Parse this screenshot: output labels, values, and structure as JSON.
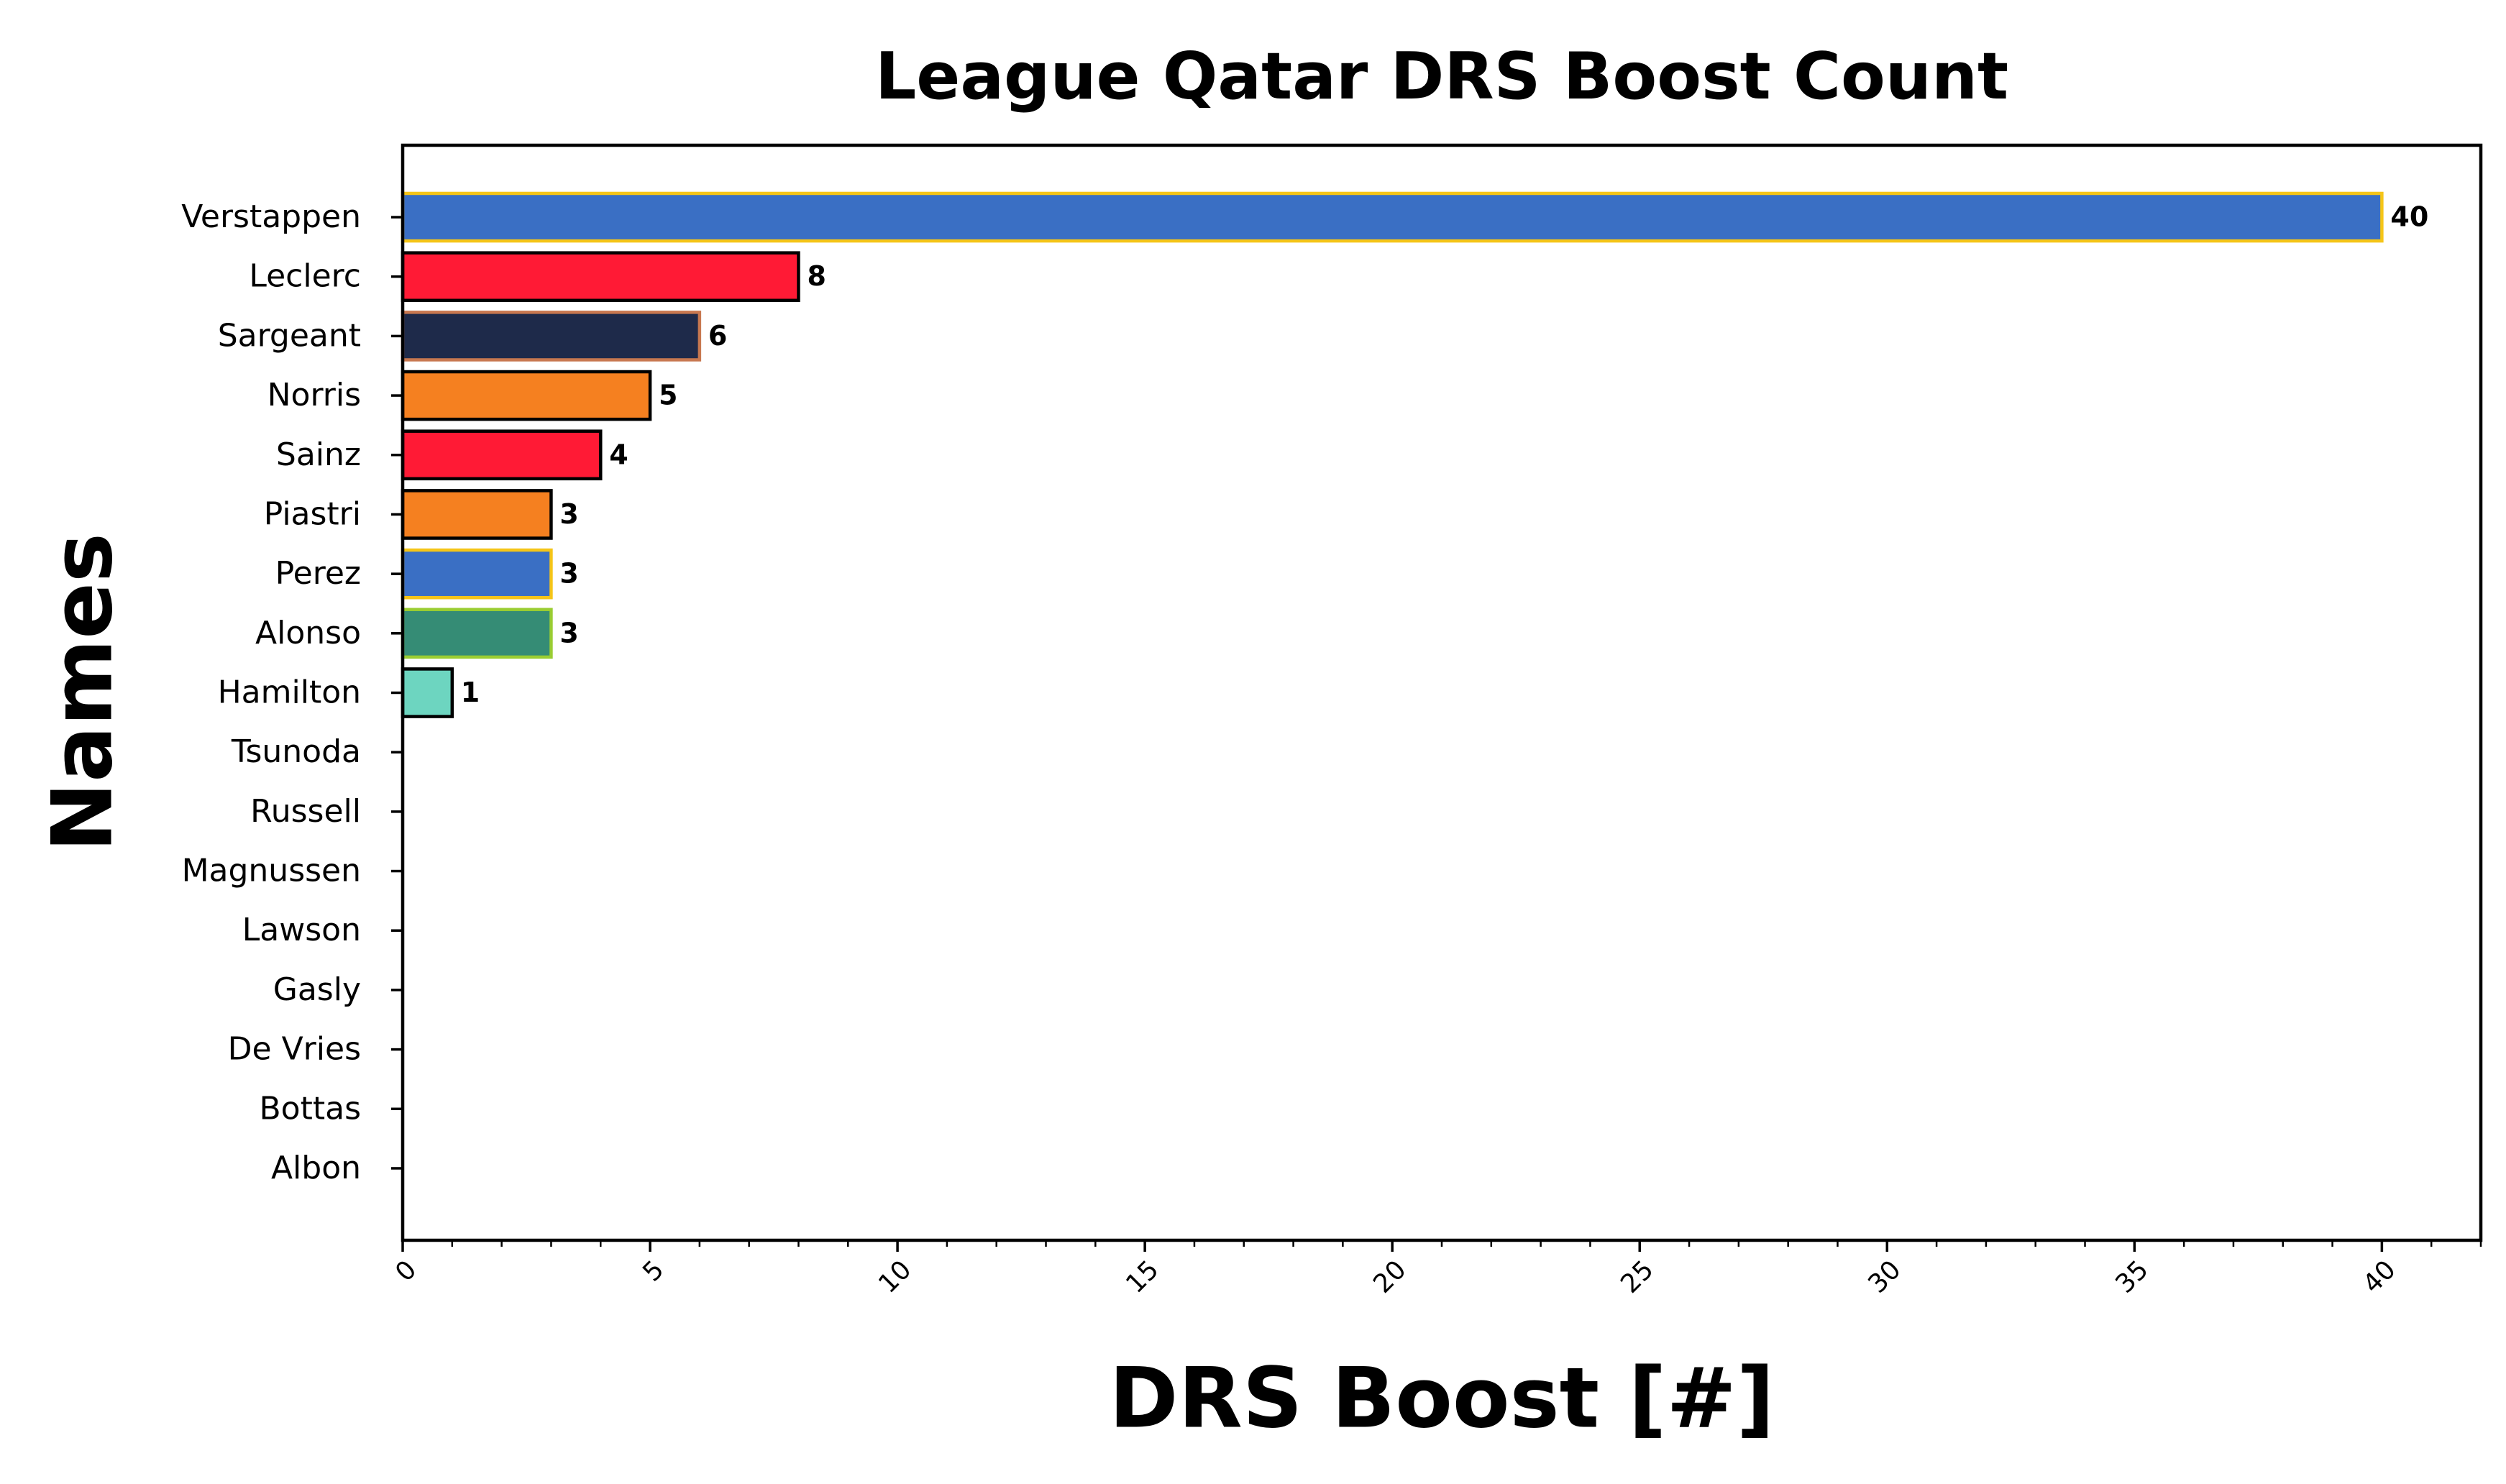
{
  "chart_data": {
    "type": "barh",
    "title": "League Qatar DRS Boost Count",
    "xlabel": "DRS Boost [#]",
    "ylabel": "Names",
    "categories": [
      "Verstappen",
      "Leclerc",
      "Sargeant",
      "Norris",
      "Sainz",
      "Piastri",
      "Perez",
      "Alonso",
      "Hamilton",
      "Tsunoda",
      "Russell",
      "Magnussen",
      "Lawson",
      "Gasly",
      "De Vries",
      "Bottas",
      "Albon"
    ],
    "values": [
      40,
      8,
      6,
      5,
      4,
      3,
      3,
      3,
      1,
      0,
      0,
      0,
      0,
      0,
      0,
      0,
      0
    ],
    "value_labels": [
      "40",
      "8",
      "6",
      "5",
      "4",
      "3",
      "3",
      "3",
      "1",
      null,
      null,
      null,
      null,
      null,
      null,
      null,
      null
    ],
    "colors": [
      "#3a6fc4",
      "#ff1a35",
      "#1e2a4a",
      "#f58020",
      "#ff1a35",
      "#f58020",
      "#3a6fc4",
      "#358c75",
      "#6dd5c0",
      "#2b4562",
      "#6dd5c0",
      "#b6babd",
      "#6692ff",
      "#2293d1",
      "#2b4562",
      "#c92d4b",
      "#37bedd"
    ],
    "edgecolors": [
      "#f5c518",
      "#000000",
      "#c87850",
      "#000000",
      "#000000",
      "#000000",
      "#f5c518",
      "#9acd32",
      "#000000",
      "#000000",
      "#000000",
      "#000000",
      "#000000",
      "#000000",
      "#000000",
      "#000000",
      "#000000"
    ],
    "xlim": [
      0,
      42
    ],
    "xticks": [
      0,
      5,
      10,
      15,
      20,
      25,
      30,
      35,
      40
    ],
    "xminorticks": [
      1,
      2,
      3,
      4,
      6,
      7,
      8,
      9,
      11,
      12,
      13,
      14,
      16,
      17,
      18,
      19,
      21,
      22,
      23,
      24,
      26,
      27,
      28,
      29,
      31,
      32,
      33,
      34,
      36,
      37,
      38,
      39,
      41,
      42
    ]
  }
}
